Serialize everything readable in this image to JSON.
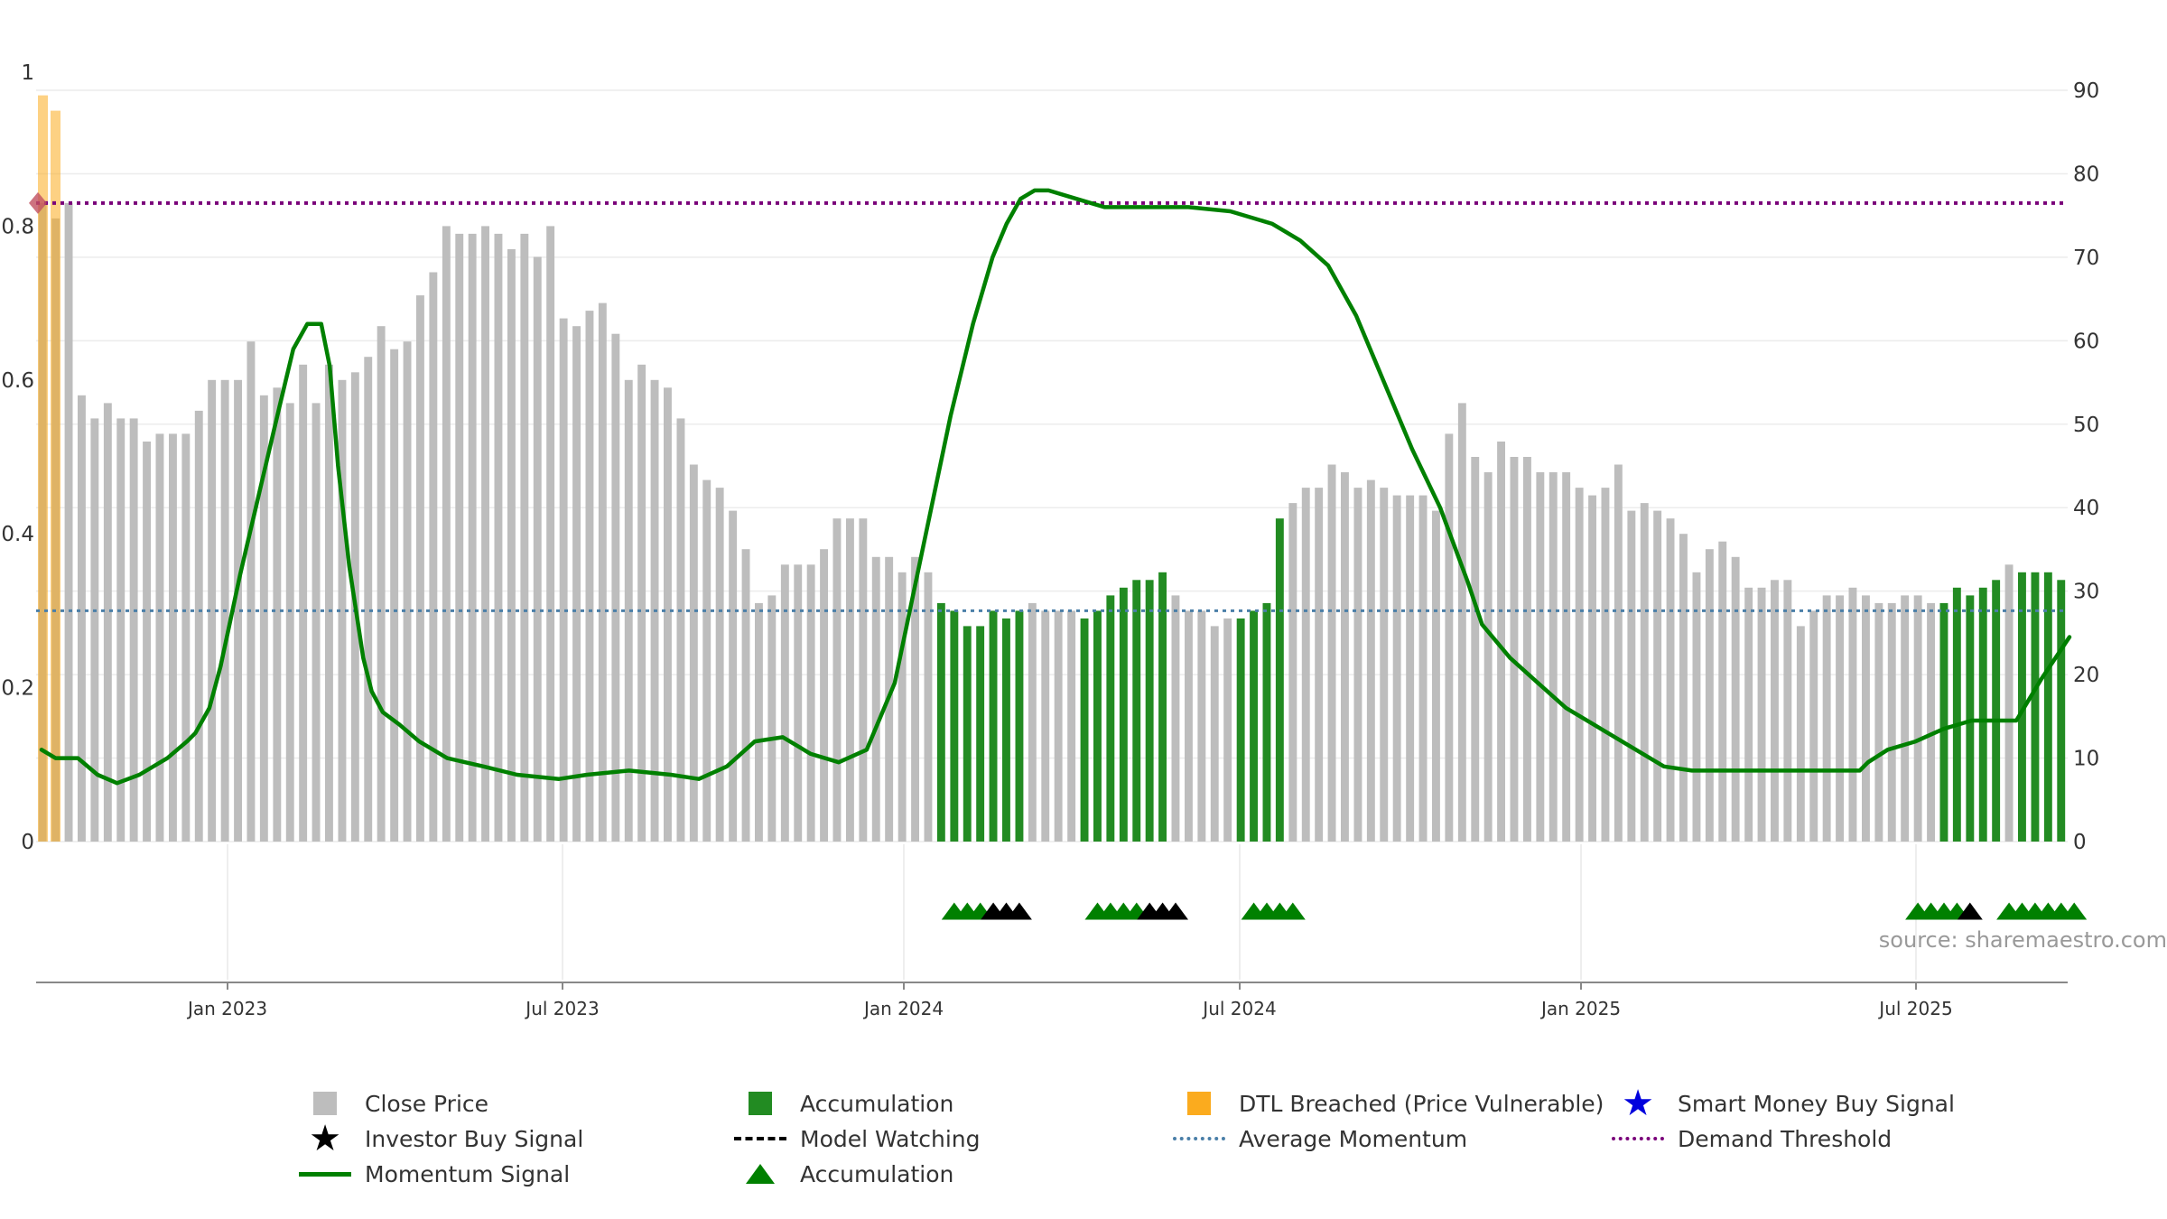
{
  "chart_data": {
    "type": "bar",
    "source_note": "source: sharemaestro.com",
    "left_axis": {
      "ticks": [
        "0",
        "0.2",
        "0.4",
        "0.6",
        "0.8",
        "1"
      ],
      "ylim": [
        0,
        1
      ]
    },
    "right_axis": {
      "ticks": [
        "0",
        "10",
        "20",
        "30",
        "40",
        "50",
        "60",
        "70",
        "80",
        "90"
      ],
      "ylim": [
        0,
        90
      ]
    },
    "x_axis": {
      "tick_labels": [
        "Jan 2023",
        "Jul 2023",
        "Jan 2024",
        "Jul 2024",
        "Jan 2025",
        "Jul 2025"
      ],
      "grid": true
    },
    "close_price": {
      "name": "Close Price",
      "color": "#bdbdbd",
      "values": [
        0.83,
        0.81,
        0.83,
        0.58,
        0.55,
        0.57,
        0.55,
        0.55,
        0.52,
        0.53,
        0.53,
        0.53,
        0.56,
        0.6,
        0.6,
        0.6,
        0.65,
        0.58,
        0.59,
        0.57,
        0.62,
        0.57,
        0.62,
        0.6,
        0.61,
        0.63,
        0.67,
        0.64,
        0.65,
        0.71,
        0.74,
        0.8,
        0.79,
        0.79,
        0.8,
        0.79,
        0.77,
        0.79,
        0.76,
        0.8,
        0.68,
        0.67,
        0.69,
        0.7,
        0.66,
        0.6,
        0.62,
        0.6,
        0.59,
        0.55,
        0.49,
        0.47,
        0.46,
        0.43,
        0.38,
        0.31,
        0.32,
        0.36,
        0.36,
        0.36,
        0.38,
        0.42,
        0.42,
        0.42,
        0.37,
        0.37,
        0.35,
        0.37,
        0.35,
        0.31,
        0.3,
        0.28,
        0.28,
        0.3,
        0.29,
        0.3,
        0.31,
        0.3,
        0.3,
        0.3,
        0.29,
        0.3,
        0.32,
        0.33,
        0.34,
        0.34,
        0.35,
        0.32,
        0.3,
        0.3,
        0.28,
        0.29,
        0.29,
        0.3,
        0.31,
        0.42,
        0.44,
        0.46,
        0.46,
        0.49,
        0.48,
        0.46,
        0.47,
        0.46,
        0.45,
        0.45,
        0.45,
        0.43,
        0.53,
        0.57,
        0.5,
        0.48,
        0.52,
        0.5,
        0.5,
        0.48,
        0.48,
        0.48,
        0.46,
        0.45,
        0.46,
        0.49,
        0.43,
        0.44,
        0.43,
        0.42,
        0.4,
        0.35,
        0.38,
        0.39,
        0.37,
        0.33,
        0.33,
        0.34,
        0.34,
        0.28,
        0.3,
        0.32,
        0.32,
        0.33,
        0.32,
        0.31,
        0.31,
        0.32,
        0.32,
        0.31,
        0.31,
        0.33,
        0.32,
        0.33,
        0.34,
        0.36,
        0.35,
        0.35,
        0.35,
        0.34
      ],
      "accumulation_flags": [
        0,
        0,
        0,
        0,
        0,
        0,
        0,
        0,
        0,
        0,
        0,
        0,
        0,
        0,
        0,
        0,
        0,
        0,
        0,
        0,
        0,
        0,
        0,
        0,
        0,
        0,
        0,
        0,
        0,
        0,
        0,
        0,
        0,
        0,
        0,
        0,
        0,
        0,
        0,
        0,
        0,
        0,
        0,
        0,
        0,
        0,
        0,
        0,
        0,
        0,
        0,
        0,
        0,
        0,
        0,
        0,
        0,
        0,
        0,
        0,
        0,
        0,
        0,
        0,
        0,
        0,
        0,
        0,
        0,
        1,
        1,
        1,
        1,
        1,
        1,
        1,
        0,
        0,
        0,
        0,
        1,
        1,
        1,
        1,
        1,
        1,
        1,
        0,
        0,
        0,
        0,
        0,
        1,
        1,
        1,
        1,
        0,
        0,
        0,
        0,
        0,
        0,
        0,
        0,
        0,
        0,
        0,
        0,
        0,
        0,
        0,
        0,
        0,
        0,
        0,
        0,
        0,
        0,
        0,
        0,
        0,
        0,
        0,
        0,
        0,
        0,
        0,
        0,
        0,
        0,
        0,
        0,
        0,
        0,
        0,
        0,
        0,
        0,
        0,
        0,
        0,
        0,
        0,
        0,
        0,
        0,
        1,
        1,
        1,
        1,
        1,
        0,
        1,
        1,
        1,
        1,
        1,
        1,
        1,
        0
      ],
      "dtl_breached_flags": [
        1,
        1
      ]
    },
    "momentum_signal": {
      "name": "Momentum Signal",
      "color": "#008000",
      "points": [
        [
          0,
          11
        ],
        [
          5,
          10
        ],
        [
          13,
          10
        ],
        [
          20,
          8
        ],
        [
          27,
          7
        ],
        [
          35,
          8
        ],
        [
          45,
          10
        ],
        [
          52,
          12
        ],
        [
          55,
          13
        ],
        [
          60,
          16
        ],
        [
          64,
          21
        ],
        [
          71,
          32
        ],
        [
          78,
          42
        ],
        [
          85,
          52
        ],
        [
          90,
          59
        ],
        [
          95,
          62
        ],
        [
          100,
          62
        ],
        [
          103,
          57
        ],
        [
          106,
          45
        ],
        [
          110,
          33
        ],
        [
          115,
          22
        ],
        [
          118,
          18
        ],
        [
          122,
          15.5
        ],
        [
          128,
          14
        ],
        [
          135,
          12
        ],
        [
          145,
          10
        ],
        [
          158,
          9
        ],
        [
          170,
          8
        ],
        [
          185,
          7.5
        ],
        [
          195,
          8
        ],
        [
          210,
          8.5
        ],
        [
          225,
          8
        ],
        [
          235,
          7.5
        ],
        [
          245,
          9
        ],
        [
          255,
          12
        ],
        [
          265,
          12.5
        ],
        [
          275,
          10.5
        ],
        [
          285,
          9.5
        ],
        [
          295,
          11
        ],
        [
          305,
          19
        ],
        [
          315,
          35
        ],
        [
          325,
          51
        ],
        [
          333,
          62
        ],
        [
          340,
          70
        ],
        [
          345,
          74
        ],
        [
          350,
          77
        ],
        [
          355,
          78
        ],
        [
          360,
          78
        ],
        [
          370,
          77
        ],
        [
          380,
          76
        ],
        [
          395,
          76
        ],
        [
          410,
          76
        ],
        [
          425,
          75.5
        ],
        [
          440,
          74
        ],
        [
          450,
          72
        ],
        [
          460,
          69
        ],
        [
          470,
          63
        ],
        [
          480,
          55
        ],
        [
          490,
          47
        ],
        [
          500,
          40
        ],
        [
          510,
          31
        ],
        [
          515,
          26
        ],
        [
          525,
          22
        ],
        [
          535,
          19
        ],
        [
          545,
          16
        ],
        [
          555,
          14
        ],
        [
          570,
          11
        ],
        [
          580,
          9
        ],
        [
          590,
          8.5
        ],
        [
          605,
          8.5
        ],
        [
          620,
          8.5
        ],
        [
          635,
          8.5
        ],
        [
          650,
          8.5
        ],
        [
          653,
          9.5
        ],
        [
          660,
          11
        ],
        [
          670,
          12
        ],
        [
          680,
          13.5
        ],
        [
          690,
          14.5
        ],
        [
          700,
          14.5
        ],
        [
          706,
          14.5
        ],
        [
          715,
          19.5
        ],
        [
          725,
          24.5
        ]
      ]
    },
    "average_momentum": {
      "name": "Average Momentum",
      "value": 0.3,
      "color": "#4a7fa8"
    },
    "demand_threshold": {
      "name": "Demand Threshold",
      "value": 0.83,
      "color": "#7a007a"
    },
    "signal_markers": {
      "groups": [
        {
          "start": 70,
          "colors": [
            "green",
            "green",
            "green",
            "black",
            "black",
            "black"
          ]
        },
        {
          "start": 81,
          "colors": [
            "green",
            "green",
            "green",
            "green",
            "black",
            "black",
            "black"
          ]
        },
        {
          "start": 93,
          "colors": [
            "green",
            "green",
            "green",
            "green"
          ]
        },
        {
          "start": 144,
          "colors": [
            "green",
            "green",
            "green",
            "green",
            "black"
          ]
        },
        {
          "start": 151,
          "colors": [
            "green",
            "green",
            "green",
            "green",
            "green"
          ]
        },
        {
          "start": 156,
          "colors": [
            "green"
          ]
        }
      ]
    }
  },
  "legend": {
    "items": [
      {
        "key": "close_price",
        "label": "Close Price",
        "symbol": "square",
        "color": "#bdbdbd"
      },
      {
        "key": "accumulation_bar",
        "label": "Accumulation",
        "symbol": "square",
        "color": "#228b22"
      },
      {
        "key": "dtl_breached",
        "label": "DTL Breached (Price Vulnerable)",
        "symbol": "square",
        "color": "#fbab1e"
      },
      {
        "key": "smart_money",
        "label": "Smart Money Buy Signal",
        "symbol": "star",
        "color": "#0000dd"
      },
      {
        "key": "investor_buy",
        "label": "Investor Buy Signal",
        "symbol": "star",
        "color": "#000000"
      },
      {
        "key": "model_watching",
        "label": "Model Watching",
        "symbol": "dash",
        "color": "#000000"
      },
      {
        "key": "average_momentum",
        "label": "Average Momentum",
        "symbol": "dot",
        "color": "#4a7fa8"
      },
      {
        "key": "demand_threshold",
        "label": "Demand Threshold",
        "symbol": "dot",
        "color": "#7a007a"
      },
      {
        "key": "momentum_signal",
        "label": "Momentum Signal",
        "symbol": "line",
        "color": "#008000"
      },
      {
        "key": "accumulation_tri",
        "label": "Accumulation",
        "symbol": "triangle",
        "color": "#008000"
      }
    ]
  }
}
